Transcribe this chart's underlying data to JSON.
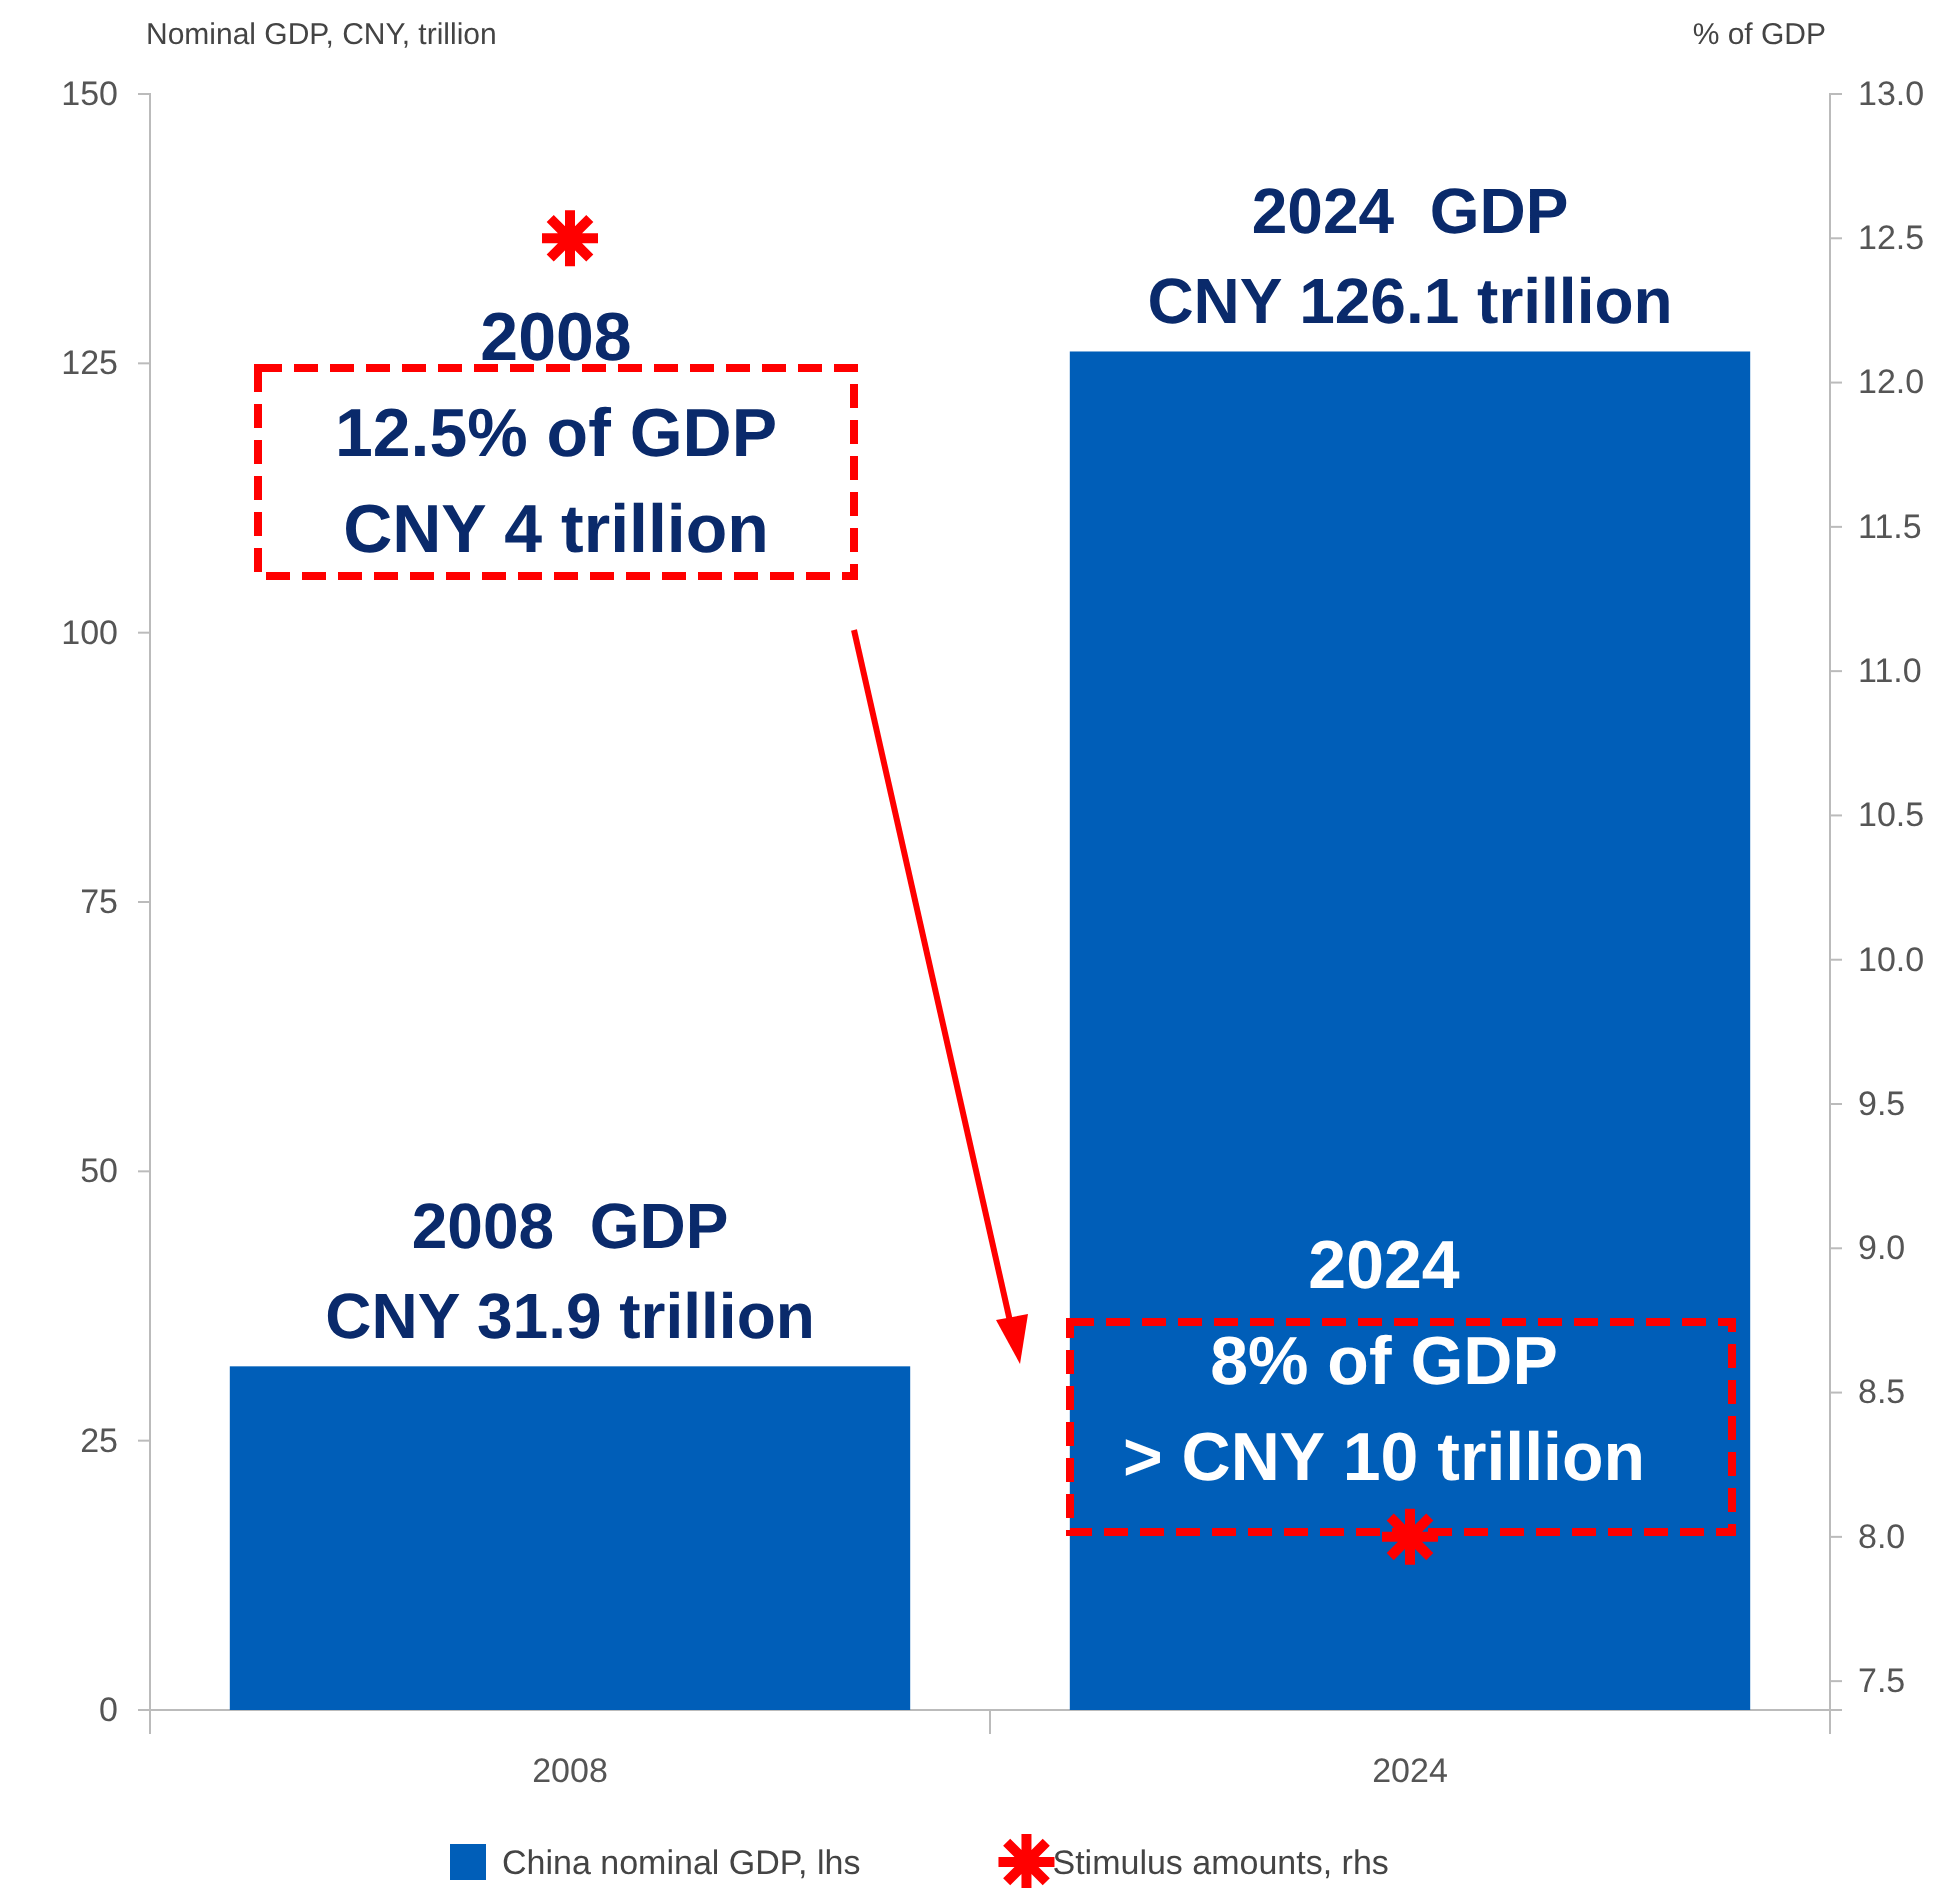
{
  "chart_data": {
    "type": "bar",
    "ylabel": "Nominal GDP, CNY, trillion",
    "y2label": "% of GDP",
    "categories": [
      "2008",
      "2024"
    ],
    "series": [
      {
        "name": "China nominal GDP, lhs",
        "color": "#005eb8",
        "values": [
          31.9,
          126.1
        ]
      },
      {
        "name": "Stimulus amounts, rhs",
        "type": "scatter",
        "axis": "y2",
        "marker": "cross",
        "color": "#ff0000",
        "values": [
          12.5,
          8.0
        ]
      }
    ],
    "ylim": [
      0,
      150
    ],
    "yticks": [
      0,
      25,
      50,
      75,
      100,
      125,
      150
    ],
    "y2lim": [
      7.4,
      13.0
    ],
    "y2ticks": [
      {
        "value": 7.5,
        "label": "7.5"
      },
      {
        "value": 8.0,
        "label": "8.0"
      },
      {
        "value": 8.5,
        "label": "8.5"
      },
      {
        "value": 9.0,
        "label": "9.0"
      },
      {
        "value": 9.5,
        "label": "9.5"
      },
      {
        "value": 10.0,
        "label": "10.0"
      },
      {
        "value": 10.5,
        "label": "10.5"
      },
      {
        "value": 11.0,
        "label": "11.0"
      },
      {
        "value": 11.5,
        "label": "11.5"
      },
      {
        "value": 12.0,
        "label": "12.0"
      },
      {
        "value": 12.5,
        "label": "12.5"
      },
      {
        "value": 13.0,
        "label": "13.0"
      }
    ],
    "annotations": [
      {
        "text": "2008  GDP\nCNY 31.9 trillion",
        "x": "2008",
        "y": 31.9
      },
      {
        "text": "2024  GDP\nCNY 126.1 trillion",
        "x": "2024",
        "y": 126.1
      },
      "2008\n12.5% of GDP\nCNY 4 trillion",
      "2024\n8% of GDP\n> CNY 10 trillion"
    ],
    "grid": false,
    "legend": "bottom"
  }
}
